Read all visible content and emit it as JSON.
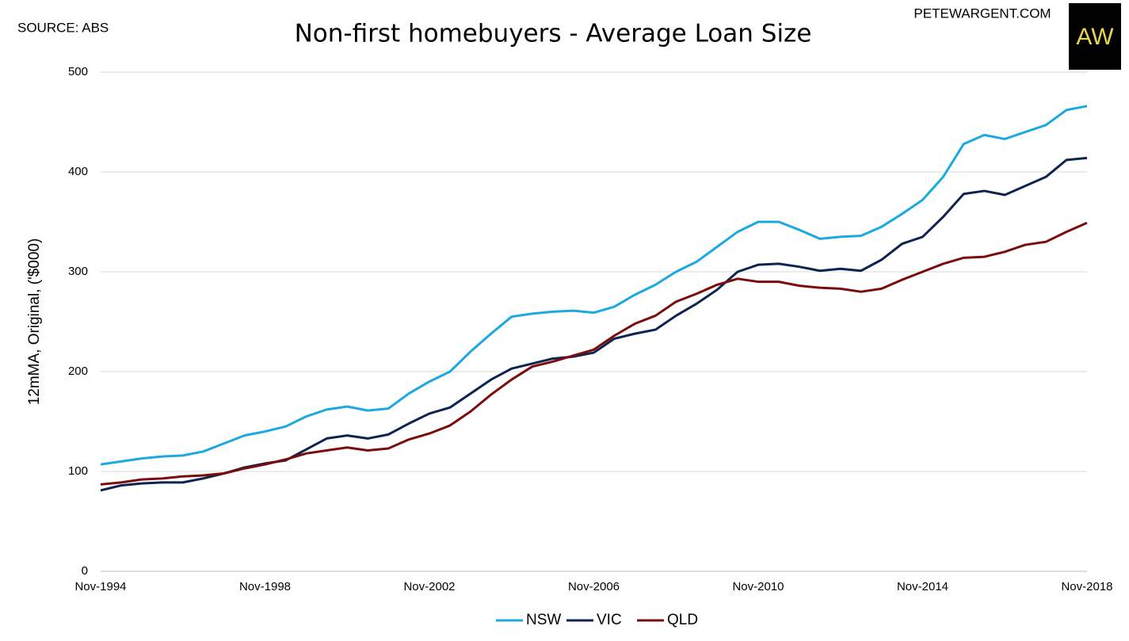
{
  "chart_data": {
    "type": "line",
    "title": "Non-first homebuyers - Average Loan Size",
    "source": "SOURCE: ABS",
    "site": "PETEWARGENT.COM",
    "logo": "AW",
    "y_label": "12mMA, Original, ('$000)",
    "categories": [
      "Nov-1994",
      null,
      null,
      null,
      null,
      null,
      null,
      null,
      "Nov-1998",
      null,
      null,
      null,
      null,
      null,
      null,
      null,
      "Nov-2002",
      null,
      null,
      null,
      null,
      null,
      null,
      null,
      "Nov-2006",
      null,
      null,
      null,
      null,
      null,
      null,
      null,
      "Nov-2010",
      null,
      null,
      null,
      null,
      null,
      null,
      null,
      "Nov-2014",
      null,
      null,
      null,
      null,
      null,
      null,
      null,
      "Nov-2018"
    ],
    "series": [
      {
        "name": "NSW",
        "color": "#1ca9e0",
        "values": [
          107,
          110,
          113,
          115,
          116,
          120,
          128,
          136,
          140,
          145,
          155,
          162,
          165,
          161,
          163,
          178,
          190,
          200,
          220,
          238,
          255,
          258,
          260,
          261,
          259,
          265,
          277,
          287,
          300,
          310,
          325,
          340,
          350,
          350,
          342,
          333,
          335,
          336,
          345,
          358,
          372,
          395,
          428,
          437,
          433,
          440,
          447,
          462,
          466
        ]
      },
      {
        "name": "VIC",
        "color": "#0d2451",
        "values": [
          81,
          86,
          88,
          89,
          89,
          93,
          98,
          104,
          108,
          111,
          122,
          133,
          136,
          133,
          137,
          148,
          158,
          164,
          178,
          192,
          203,
          208,
          213,
          215,
          219,
          233,
          238,
          242,
          256,
          268,
          282,
          300,
          307,
          308,
          305,
          301,
          303,
          301,
          312,
          328,
          335,
          355,
          378,
          381,
          377,
          386,
          395,
          412,
          414
        ]
      },
      {
        "name": "QLD",
        "color": "#7b0c0c",
        "values": [
          87,
          89,
          92,
          93,
          95,
          96,
          98,
          103,
          107,
          112,
          118,
          121,
          124,
          121,
          123,
          132,
          138,
          146,
          160,
          177,
          192,
          205,
          210,
          216,
          222,
          236,
          248,
          256,
          270,
          278,
          287,
          293,
          290,
          290,
          286,
          284,
          283,
          280,
          283,
          292,
          300,
          308,
          314,
          315,
          320,
          327,
          330,
          340,
          349
        ]
      }
    ],
    "ylim": [
      0,
      500
    ],
    "yticks": [
      0,
      100,
      200,
      300,
      400,
      500
    ],
    "grid": true,
    "legend": "bottom"
  }
}
